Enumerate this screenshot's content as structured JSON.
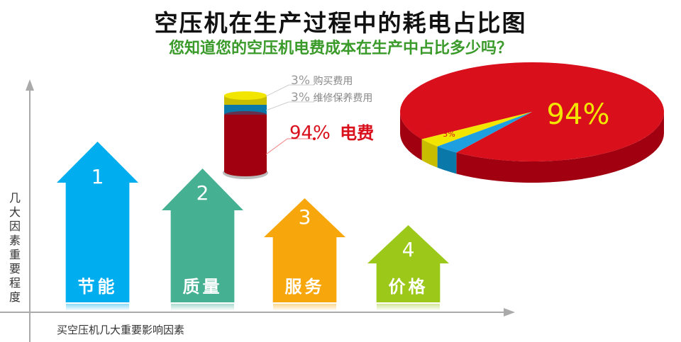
{
  "title": "空压机在生产过程中的耗电占比图",
  "subtitle": "您知道您的空压机电费成本在生产中占比多少吗？",
  "factors": {
    "y_label": "几大因素重要程度",
    "x_label": "买空压机几大重要影响因素",
    "items": [
      {
        "rank": "1",
        "label": "节能",
        "color": "#00aeef"
      },
      {
        "rank": "2",
        "label": "质量",
        "color": "#45b092"
      },
      {
        "rank": "3",
        "label": "服务",
        "color": "#f7a70b"
      },
      {
        "rank": "4",
        "label": "价格",
        "color": "#9cc81a"
      }
    ]
  },
  "cylinder_legend": [
    {
      "pct": "3%",
      "label": "购买费用"
    },
    {
      "pct": "3%",
      "label": "维修保养费用"
    },
    {
      "pct": "94%",
      "label": "电费"
    }
  ],
  "chart_data": {
    "type": "pie",
    "categories": [
      "电费",
      "购买费用",
      "维修保养费用"
    ],
    "values": [
      94,
      3,
      3
    ],
    "data_labels": [
      "94%",
      "3%",
      "3%"
    ],
    "colors": [
      "#d90f1c",
      "#f2e600",
      "#1ea0e0"
    ],
    "style": "3d"
  }
}
